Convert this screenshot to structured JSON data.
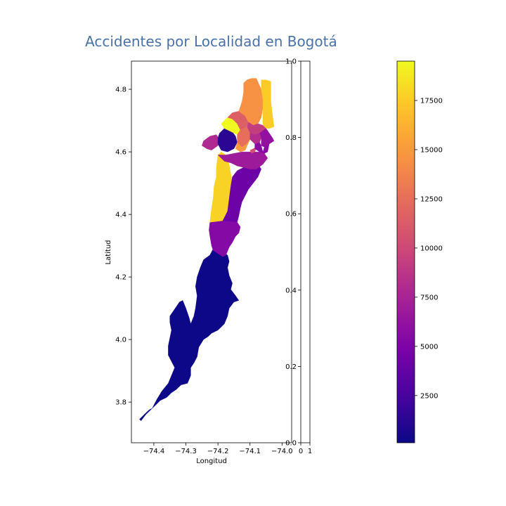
{
  "chart_data": {
    "type": "choropleth",
    "title": "Accidentes por Localidad en Bogotá",
    "title_color": "#4a72a6",
    "xlabel": "Longitud",
    "ylabel": "Latitud",
    "xlim": [
      -74.47,
      -73.97
    ],
    "ylim": [
      3.67,
      4.89
    ],
    "xticks": [
      -74.4,
      -74.3,
      -74.2,
      -74.1,
      -74.0
    ],
    "xtick_labels": [
      "−74.4",
      "−74.3",
      "−74.2",
      "−74.1",
      "−74.0"
    ],
    "yticks": [
      3.8,
      4.0,
      4.2,
      4.4,
      4.6,
      4.8
    ],
    "ytick_labels": [
      "3.8",
      "4.0",
      "4.2",
      "4.4",
      "4.6",
      "4.8"
    ],
    "colormap": "plasma",
    "colorbar": {
      "vmin": 100,
      "vmax": 19500,
      "ticks": [
        2500,
        5000,
        7500,
        10000,
        12500,
        15000,
        17500
      ],
      "tick_labels": [
        "2500",
        "5000",
        "7500",
        "10000",
        "12500",
        "15000",
        "17500"
      ]
    },
    "inset_axis": {
      "yticks": [
        0.0,
        0.2,
        0.4,
        0.6,
        0.8,
        1.0
      ],
      "ytick_labels": [
        "0.0",
        "0.2",
        "0.4",
        "0.6",
        "0.8",
        "1.0"
      ],
      "xtick_labels": [
        "0",
        "1"
      ]
    },
    "regions": [
      {
        "value": 100,
        "polygon": [
          [
            -74.445,
            3.745
          ],
          [
            -74.43,
            3.76
          ],
          [
            -74.415,
            3.775
          ],
          [
            -74.405,
            3.78
          ],
          [
            -74.39,
            3.81
          ],
          [
            -74.375,
            3.835
          ],
          [
            -74.355,
            3.86
          ],
          [
            -74.345,
            3.885
          ],
          [
            -74.335,
            3.91
          ],
          [
            -74.345,
            3.93
          ],
          [
            -74.355,
            3.95
          ],
          [
            -74.355,
            3.98
          ],
          [
            -74.35,
            4.005
          ],
          [
            -74.345,
            4.03
          ],
          [
            -74.35,
            4.055
          ],
          [
            -74.35,
            4.075
          ],
          [
            -74.34,
            4.09
          ],
          [
            -74.32,
            4.12
          ],
          [
            -74.31,
            4.125
          ],
          [
            -74.3,
            4.1
          ],
          [
            -74.29,
            4.07
          ],
          [
            -74.285,
            4.05
          ],
          [
            -74.275,
            4.075
          ],
          [
            -74.27,
            4.1
          ],
          [
            -74.265,
            4.14
          ],
          [
            -74.27,
            4.17
          ],
          [
            -74.265,
            4.2
          ],
          [
            -74.255,
            4.23
          ],
          [
            -74.245,
            4.255
          ],
          [
            -74.225,
            4.27
          ],
          [
            -74.215,
            4.29
          ],
          [
            -74.2,
            4.295
          ],
          [
            -74.185,
            4.28
          ],
          [
            -74.17,
            4.27
          ],
          [
            -74.165,
            4.25
          ],
          [
            -74.17,
            4.23
          ],
          [
            -74.165,
            4.205
          ],
          [
            -74.155,
            4.18
          ],
          [
            -74.16,
            4.16
          ],
          [
            -74.145,
            4.14
          ],
          [
            -74.135,
            4.125
          ],
          [
            -74.15,
            4.12
          ],
          [
            -74.165,
            4.1
          ],
          [
            -74.17,
            4.075
          ],
          [
            -74.18,
            4.05
          ],
          [
            -74.2,
            4.03
          ],
          [
            -74.22,
            4.02
          ],
          [
            -74.23,
            4.01
          ],
          [
            -74.245,
            4.0
          ],
          [
            -74.26,
            3.975
          ],
          [
            -74.265,
            3.945
          ],
          [
            -74.275,
            3.925
          ],
          [
            -74.285,
            3.91
          ],
          [
            -74.285,
            3.885
          ],
          [
            -74.295,
            3.86
          ],
          [
            -74.315,
            3.855
          ],
          [
            -74.33,
            3.84
          ],
          [
            -74.345,
            3.83
          ],
          [
            -74.36,
            3.815
          ],
          [
            -74.38,
            3.805
          ],
          [
            -74.395,
            3.79
          ],
          [
            -74.41,
            3.775
          ],
          [
            -74.425,
            3.76
          ],
          [
            -74.44,
            3.74
          ]
        ]
      },
      {
        "value": 5400,
        "polygon": [
          [
            -74.215,
            4.285
          ],
          [
            -74.2,
            4.275
          ],
          [
            -74.185,
            4.265
          ],
          [
            -74.175,
            4.27
          ],
          [
            -74.165,
            4.295
          ],
          [
            -74.155,
            4.31
          ],
          [
            -74.145,
            4.33
          ],
          [
            -74.135,
            4.34
          ],
          [
            -74.13,
            4.36
          ],
          [
            -74.14,
            4.375
          ],
          [
            -74.185,
            4.38
          ],
          [
            -74.225,
            4.375
          ],
          [
            -74.228,
            4.35
          ],
          [
            -74.225,
            4.33
          ],
          [
            -74.22,
            4.3
          ]
        ]
      },
      {
        "value": 17800,
        "polygon": [
          [
            -74.225,
            4.375
          ],
          [
            -74.185,
            4.38
          ],
          [
            -74.175,
            4.385
          ],
          [
            -74.17,
            4.41
          ],
          [
            -74.165,
            4.44
          ],
          [
            -74.16,
            4.47
          ],
          [
            -74.155,
            4.5
          ],
          [
            -74.16,
            4.53
          ],
          [
            -74.165,
            4.56
          ],
          [
            -74.175,
            4.59
          ],
          [
            -74.19,
            4.6
          ],
          [
            -74.2,
            4.59
          ],
          [
            -74.205,
            4.55
          ],
          [
            -74.205,
            4.52
          ],
          [
            -74.212,
            4.49
          ],
          [
            -74.215,
            4.45
          ],
          [
            -74.22,
            4.42
          ]
        ]
      },
      {
        "value": 4200,
        "polygon": [
          [
            -74.185,
            4.38
          ],
          [
            -74.14,
            4.375
          ],
          [
            -74.135,
            4.395
          ],
          [
            -74.13,
            4.42
          ],
          [
            -74.125,
            4.44
          ],
          [
            -74.115,
            4.46
          ],
          [
            -74.105,
            4.48
          ],
          [
            -74.09,
            4.5
          ],
          [
            -74.075,
            4.52
          ],
          [
            -74.065,
            4.545
          ],
          [
            -74.075,
            4.56
          ],
          [
            -74.1,
            4.56
          ],
          [
            -74.12,
            4.55
          ],
          [
            -74.14,
            4.54
          ],
          [
            -74.155,
            4.52
          ],
          [
            -74.16,
            4.49
          ],
          [
            -74.165,
            4.45
          ],
          [
            -74.17,
            4.41
          ]
        ]
      },
      {
        "value": 6800,
        "polygon": [
          [
            -74.2,
            4.59
          ],
          [
            -74.175,
            4.59
          ],
          [
            -74.15,
            4.595
          ],
          [
            -74.125,
            4.6
          ],
          [
            -74.1,
            4.6
          ],
          [
            -74.07,
            4.6
          ],
          [
            -74.055,
            4.595
          ],
          [
            -74.045,
            4.58
          ],
          [
            -74.06,
            4.56
          ],
          [
            -74.08,
            4.545
          ],
          [
            -74.1,
            4.545
          ],
          [
            -74.12,
            4.55
          ],
          [
            -74.14,
            4.555
          ],
          [
            -74.16,
            4.565
          ],
          [
            -74.18,
            4.57
          ]
        ]
      },
      {
        "value": 7900,
        "polygon": [
          [
            -74.245,
            4.635
          ],
          [
            -74.225,
            4.65
          ],
          [
            -74.205,
            4.655
          ],
          [
            -74.195,
            4.64
          ],
          [
            -74.2,
            4.62
          ],
          [
            -74.22,
            4.605
          ],
          [
            -74.235,
            4.61
          ],
          [
            -74.25,
            4.62
          ]
        ]
      },
      {
        "value": 1300,
        "polygon": [
          [
            -74.195,
            4.66
          ],
          [
            -74.18,
            4.675
          ],
          [
            -74.16,
            4.67
          ],
          [
            -74.145,
            4.65
          ],
          [
            -74.14,
            4.63
          ],
          [
            -74.15,
            4.61
          ],
          [
            -74.17,
            4.6
          ],
          [
            -74.19,
            4.605
          ],
          [
            -74.2,
            4.625
          ],
          [
            -74.2,
            4.645
          ]
        ]
      },
      {
        "value": 19500,
        "polygon": [
          [
            -74.19,
            4.69
          ],
          [
            -74.17,
            4.71
          ],
          [
            -74.15,
            4.705
          ],
          [
            -74.135,
            4.69
          ],
          [
            -74.13,
            4.67
          ],
          [
            -74.14,
            4.655
          ],
          [
            -74.16,
            4.665
          ],
          [
            -74.18,
            4.675
          ]
        ]
      },
      {
        "value": 11500,
        "polygon": [
          [
            -74.17,
            4.71
          ],
          [
            -74.155,
            4.725
          ],
          [
            -74.135,
            4.73
          ],
          [
            -74.115,
            4.715
          ],
          [
            -74.105,
            4.695
          ],
          [
            -74.11,
            4.68
          ],
          [
            -74.13,
            4.67
          ],
          [
            -74.14,
            4.69
          ],
          [
            -74.155,
            4.705
          ]
        ]
      },
      {
        "value": 14500,
        "polygon": [
          [
            -74.135,
            4.73
          ],
          [
            -74.125,
            4.76
          ],
          [
            -74.12,
            4.79
          ],
          [
            -74.12,
            4.82
          ],
          [
            -74.11,
            4.83
          ],
          [
            -74.095,
            4.835
          ],
          [
            -74.08,
            4.835
          ],
          [
            -74.065,
            4.8
          ],
          [
            -74.06,
            4.77
          ],
          [
            -74.06,
            4.74
          ],
          [
            -74.065,
            4.71
          ],
          [
            -74.075,
            4.69
          ],
          [
            -74.09,
            4.685
          ],
          [
            -74.105,
            4.695
          ],
          [
            -74.115,
            4.715
          ]
        ]
      },
      {
        "value": 17500,
        "polygon": [
          [
            -74.065,
            4.83
          ],
          [
            -74.05,
            4.83
          ],
          [
            -74.035,
            4.825
          ],
          [
            -74.035,
            4.8
          ],
          [
            -74.035,
            4.76
          ],
          [
            -74.03,
            4.72
          ],
          [
            -74.025,
            4.68
          ],
          [
            -74.04,
            4.675
          ],
          [
            -74.055,
            4.675
          ],
          [
            -74.06,
            4.69
          ],
          [
            -74.06,
            4.73
          ],
          [
            -74.06,
            4.77
          ],
          [
            -74.065,
            4.8
          ]
        ]
      },
      {
        "value": 9300,
        "polygon": [
          [
            -74.105,
            4.695
          ],
          [
            -74.09,
            4.685
          ],
          [
            -74.075,
            4.69
          ],
          [
            -74.06,
            4.685
          ],
          [
            -74.05,
            4.675
          ],
          [
            -74.07,
            4.66
          ],
          [
            -74.085,
            4.655
          ],
          [
            -74.1,
            4.66
          ],
          [
            -74.11,
            4.675
          ]
        ]
      },
      {
        "value": 12500,
        "polygon": [
          [
            -74.14,
            4.655
          ],
          [
            -74.13,
            4.67
          ],
          [
            -74.11,
            4.68
          ],
          [
            -74.1,
            4.66
          ],
          [
            -74.1,
            4.64
          ],
          [
            -74.11,
            4.625
          ],
          [
            -74.125,
            4.615
          ],
          [
            -74.14,
            4.63
          ]
        ]
      },
      {
        "value": 8200,
        "polygon": [
          [
            -74.1,
            4.66
          ],
          [
            -74.085,
            4.655
          ],
          [
            -74.07,
            4.66
          ],
          [
            -74.065,
            4.645
          ],
          [
            -74.07,
            4.63
          ],
          [
            -74.085,
            4.625
          ],
          [
            -74.1,
            4.64
          ]
        ]
      },
      {
        "value": 15000,
        "polygon": [
          [
            -74.14,
            4.63
          ],
          [
            -74.125,
            4.615
          ],
          [
            -74.11,
            4.625
          ],
          [
            -74.1,
            4.64
          ],
          [
            -74.115,
            4.605
          ],
          [
            -74.13,
            4.6
          ],
          [
            -74.145,
            4.61
          ]
        ]
      },
      {
        "value": 6200,
        "polygon": [
          [
            -74.07,
            4.66
          ],
          [
            -74.05,
            4.675
          ],
          [
            -74.04,
            4.66
          ],
          [
            -74.03,
            4.645
          ],
          [
            -74.025,
            4.635
          ],
          [
            -74.04,
            4.625
          ],
          [
            -74.055,
            4.615
          ],
          [
            -74.065,
            4.62
          ],
          [
            -74.065,
            4.645
          ]
        ]
      },
      {
        "value": 10500,
        "polygon": [
          [
            -74.1,
            4.605
          ],
          [
            -74.09,
            4.61
          ],
          [
            -74.08,
            4.615
          ],
          [
            -74.085,
            4.6
          ],
          [
            -74.095,
            4.595
          ]
        ]
      },
      {
        "value": 5600,
        "polygon": [
          [
            -74.085,
            4.625
          ],
          [
            -74.07,
            4.63
          ],
          [
            -74.065,
            4.62
          ],
          [
            -74.06,
            4.6
          ],
          [
            -74.055,
            4.615
          ],
          [
            -74.04,
            4.625
          ],
          [
            -74.045,
            4.6
          ],
          [
            -74.055,
            4.595
          ],
          [
            -74.07,
            4.6
          ],
          [
            -74.085,
            4.61
          ]
        ]
      }
    ]
  }
}
